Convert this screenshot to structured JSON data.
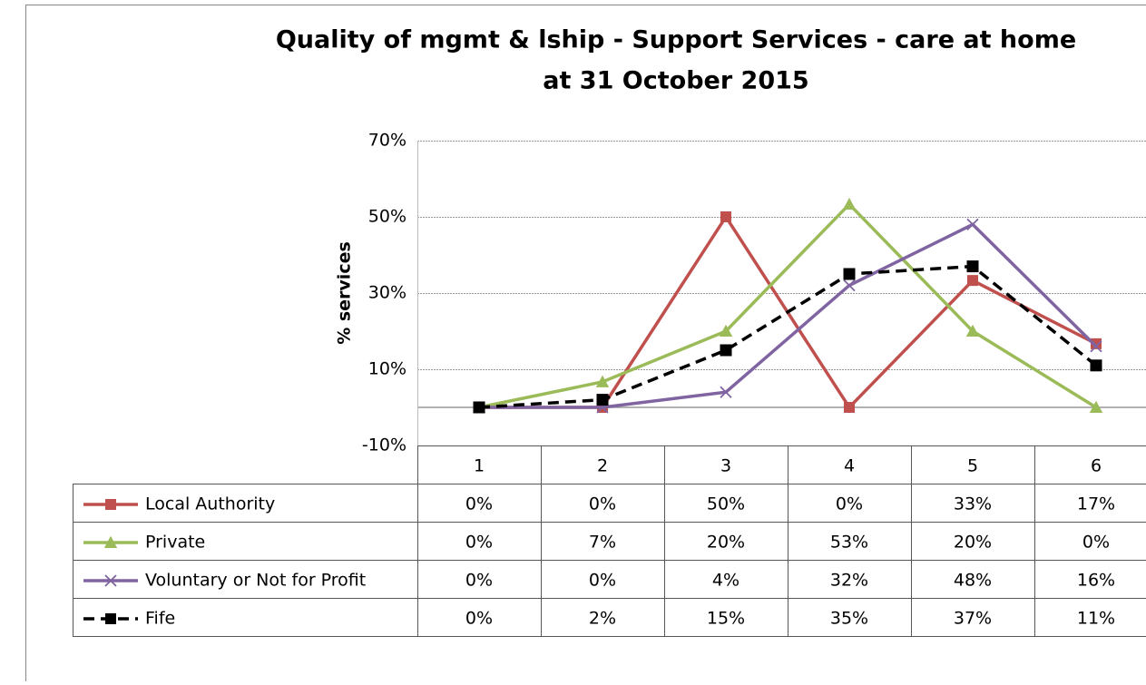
{
  "chart_data": {
    "type": "line",
    "title": "Quality of mgmt & lship - Support Services - care at home",
    "subtitle": "at 31 October 2015",
    "y_label": "% services",
    "categories": [
      "1",
      "2",
      "3",
      "4",
      "5",
      "6"
    ],
    "ylim": [
      -10,
      70
    ],
    "yticks": [
      {
        "value": -10,
        "label": "-10%"
      },
      {
        "value": 10,
        "label": "10%"
      },
      {
        "value": 30,
        "label": "30%"
      },
      {
        "value": 50,
        "label": "50%"
      },
      {
        "value": 70,
        "label": "70%"
      }
    ],
    "grid": true,
    "series": [
      {
        "name": "Local Authority",
        "color": "#c0504d",
        "marker": "square",
        "dash": false,
        "values": [
          0,
          0,
          50,
          0,
          33.3,
          16.7
        ],
        "value_labels": [
          "0%",
          "0%",
          "50%",
          "0%",
          "33%",
          "17%"
        ]
      },
      {
        "name": "Private",
        "color": "#9bbb59",
        "marker": "triangle",
        "dash": false,
        "values": [
          0,
          6.7,
          20,
          53.3,
          20,
          0
        ],
        "value_labels": [
          "0%",
          "7%",
          "20%",
          "53%",
          "20%",
          "0%"
        ]
      },
      {
        "name": "Voluntary or Not for Profit",
        "color": "#8064a2",
        "marker": "x",
        "dash": false,
        "values": [
          0,
          0,
          4,
          32,
          48,
          16
        ],
        "value_labels": [
          "0%",
          "0%",
          "4%",
          "32%",
          "48%",
          "16%"
        ]
      },
      {
        "name": "Fife",
        "color": "#000000",
        "marker": "square",
        "dash": true,
        "values": [
          0,
          2,
          15,
          35,
          37,
          11
        ],
        "value_labels": [
          "0%",
          "2%",
          "15%",
          "35%",
          "37%",
          "11%"
        ]
      }
    ]
  }
}
